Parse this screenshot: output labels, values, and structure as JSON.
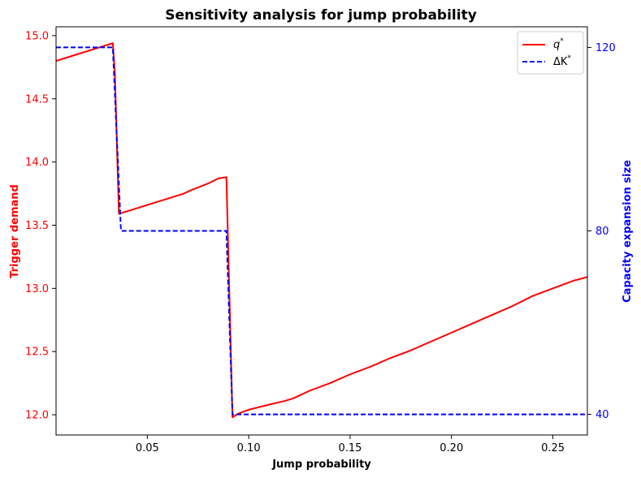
{
  "chart_data": {
    "type": "line",
    "title": "Sensitivity analysis for jump probability",
    "xlabel": "Jump probability",
    "ylabel_left": "Trigger demand",
    "ylabel_right": "Capacity expansion size",
    "xlim": [
      0.005,
      0.267
    ],
    "ylim_left": [
      11.84,
      15.07
    ],
    "ylim_right": [
      35.5,
      124.5
    ],
    "x_ticks": [
      0.05,
      0.1,
      0.15,
      0.2,
      0.25
    ],
    "x_tick_labels": [
      "0.05",
      "0.10",
      "0.15",
      "0.20",
      "0.25"
    ],
    "y_left_ticks": [
      12.0,
      12.5,
      13.0,
      13.5,
      14.0,
      14.5,
      15.0
    ],
    "y_left_tick_labels": [
      "12.0",
      "12.5",
      "13.0",
      "13.5",
      "14.0",
      "14.5",
      "15.0"
    ],
    "y_right_ticks": [
      40,
      80,
      120
    ],
    "y_right_tick_labels": [
      "40",
      "80",
      "120"
    ],
    "grid": false,
    "legend_position": "top-right",
    "series": [
      {
        "name": "q*",
        "legend_label": "q",
        "legend_sup": "*",
        "axis": "left",
        "color": "#ff0000",
        "style": "solid",
        "x": [
          0.005,
          0.015,
          0.025,
          0.033,
          0.034,
          0.036,
          0.05,
          0.06,
          0.068,
          0.072,
          0.08,
          0.085,
          0.089,
          0.092,
          0.095,
          0.1,
          0.11,
          0.118,
          0.122,
          0.13,
          0.14,
          0.15,
          0.16,
          0.17,
          0.18,
          0.19,
          0.2,
          0.21,
          0.22,
          0.23,
          0.24,
          0.25,
          0.26,
          0.267
        ],
        "values": [
          14.8,
          14.85,
          14.9,
          14.94,
          14.7,
          13.59,
          13.66,
          13.71,
          13.75,
          13.78,
          13.83,
          13.87,
          13.88,
          11.98,
          12.01,
          12.04,
          12.08,
          12.11,
          12.13,
          12.19,
          12.25,
          12.32,
          12.38,
          12.45,
          12.51,
          12.58,
          12.65,
          12.72,
          12.79,
          12.86,
          12.94,
          13.0,
          13.06,
          13.09
        ]
      },
      {
        "name": "ΔK*",
        "legend_label": "ΔK",
        "legend_sup": "*",
        "axis": "right",
        "color": "#0000ff",
        "style": "dashed",
        "x": [
          0.005,
          0.033,
          0.037,
          0.089,
          0.092,
          0.267
        ],
        "values": [
          120,
          120,
          80,
          80,
          40,
          40
        ]
      }
    ]
  }
}
